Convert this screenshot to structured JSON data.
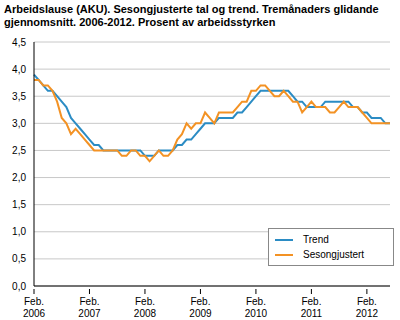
{
  "chart_data": {
    "type": "line",
    "title": "Arbeidslause (AKU). Sesongjusterte tal og trend. Tremånaders glidande gjennomsnitt. 2006-2012. Prosent av arbeidsstyrken",
    "categories": [
      "Feb. 2006",
      null,
      null,
      null,
      null,
      null,
      null,
      null,
      null,
      null,
      null,
      null,
      "Feb. 2007",
      null,
      null,
      null,
      null,
      null,
      null,
      null,
      null,
      null,
      null,
      null,
      "Feb. 2008",
      null,
      null,
      null,
      null,
      null,
      null,
      null,
      null,
      null,
      null,
      null,
      "Feb. 2009",
      null,
      null,
      null,
      null,
      null,
      null,
      null,
      null,
      null,
      null,
      null,
      "Feb. 2010",
      null,
      null,
      null,
      null,
      null,
      null,
      null,
      null,
      null,
      null,
      null,
      "Feb. 2011",
      null,
      null,
      null,
      null,
      null,
      null,
      null,
      null,
      null,
      null,
      null,
      "Feb. 2012",
      null,
      null,
      null,
      null,
      null
    ],
    "series": [
      {
        "name": "Trend",
        "color": "#2b8cc4",
        "values": [
          3.9,
          3.8,
          3.7,
          3.6,
          3.6,
          3.5,
          3.4,
          3.3,
          3.1,
          3.0,
          2.9,
          2.8,
          2.7,
          2.6,
          2.6,
          2.5,
          2.5,
          2.5,
          2.5,
          2.5,
          2.5,
          2.5,
          2.5,
          2.5,
          2.4,
          2.4,
          2.4,
          2.5,
          2.5,
          2.5,
          2.5,
          2.6,
          2.6,
          2.7,
          2.7,
          2.8,
          2.9,
          3.0,
          3.0,
          3.0,
          3.1,
          3.1,
          3.1,
          3.1,
          3.2,
          3.2,
          3.3,
          3.4,
          3.5,
          3.6,
          3.6,
          3.6,
          3.6,
          3.6,
          3.6,
          3.6,
          3.5,
          3.4,
          3.4,
          3.3,
          3.3,
          3.3,
          3.3,
          3.4,
          3.4,
          3.4,
          3.4,
          3.4,
          3.4,
          3.3,
          3.3,
          3.2,
          3.2,
          3.1,
          3.1,
          3.1,
          3.0,
          3.0
        ]
      },
      {
        "name": "Sesongjustert",
        "color": "#f39224",
        "values": [
          3.8,
          3.8,
          3.7,
          3.7,
          3.6,
          3.4,
          3.1,
          3.0,
          2.8,
          2.9,
          2.8,
          2.7,
          2.6,
          2.5,
          2.5,
          2.5,
          2.5,
          2.5,
          2.5,
          2.4,
          2.4,
          2.5,
          2.5,
          2.4,
          2.4,
          2.3,
          2.4,
          2.5,
          2.4,
          2.4,
          2.5,
          2.7,
          2.8,
          3.0,
          2.9,
          3.0,
          3.0,
          3.2,
          3.1,
          3.0,
          3.2,
          3.2,
          3.2,
          3.2,
          3.3,
          3.4,
          3.4,
          3.6,
          3.6,
          3.7,
          3.7,
          3.6,
          3.5,
          3.5,
          3.6,
          3.5,
          3.4,
          3.4,
          3.2,
          3.3,
          3.4,
          3.3,
          3.3,
          3.3,
          3.2,
          3.2,
          3.3,
          3.4,
          3.3,
          3.3,
          3.3,
          3.2,
          3.1,
          3.0,
          3.0,
          3.0,
          3.0,
          3.0
        ]
      }
    ],
    "ylim": [
      0,
      4.5
    ],
    "yticks": [
      {
        "value": 0,
        "label": "0,0"
      },
      {
        "value": 0.5,
        "label": "0,5"
      },
      {
        "value": 1,
        "label": "1,0"
      },
      {
        "value": 1.5,
        "label": "1,5"
      },
      {
        "value": 2,
        "label": "2,0"
      },
      {
        "value": 2.5,
        "label": "2,5"
      },
      {
        "value": 3,
        "label": "3,0"
      },
      {
        "value": 3.5,
        "label": "3,5"
      },
      {
        "value": 4,
        "label": "4,0"
      },
      {
        "value": 4.5,
        "label": "4,5"
      }
    ],
    "grid": true,
    "legend": "lower right"
  }
}
